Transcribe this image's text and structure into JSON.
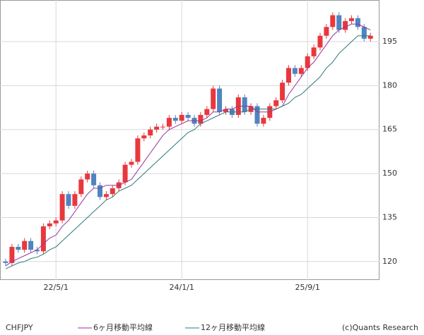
{
  "chart_data": {
    "type": "candlestick",
    "categories": [
      null,
      null,
      null,
      null,
      null,
      null,
      null,
      null,
      "22/5/1",
      null,
      null,
      null,
      null,
      null,
      null,
      null,
      null,
      null,
      null,
      null,
      null,
      null,
      null,
      null,
      null,
      null,
      null,
      null,
      "24/1/1",
      null,
      null,
      null,
      null,
      null,
      null,
      null,
      null,
      null,
      null,
      null,
      null,
      null,
      null,
      null,
      null,
      null,
      null,
      null,
      "25/9/1",
      null,
      null,
      null,
      null,
      null,
      null,
      null,
      null,
      null,
      null
    ],
    "ylim": [
      113.7,
      209.2
    ],
    "yticks": [
      120,
      135,
      150,
      165,
      180,
      195
    ],
    "grid": true,
    "axis_side": "right",
    "source": "(c)Quants Research",
    "series": [
      {
        "name": "CHFJPY",
        "type": "candlestick",
        "up_color": "#e8383d",
        "down_color": "#4f84c0",
        "open": [
          120,
          119.5,
          125,
          124,
          127,
          124,
          123.5,
          132,
          133,
          134,
          143,
          139,
          143,
          148,
          150,
          146,
          142,
          143,
          145,
          147,
          153,
          154,
          162,
          163,
          165,
          166,
          166,
          169,
          168,
          170,
          169,
          167,
          170,
          172,
          179,
          171,
          172,
          170,
          176,
          171,
          173,
          167,
          169,
          173,
          175,
          181,
          186,
          184,
          186,
          190,
          193,
          197,
          200,
          204,
          199,
          202,
          203,
          200,
          196
        ],
        "high": [
          121,
          126,
          126,
          128,
          128,
          125,
          133,
          134,
          135,
          144,
          144,
          144,
          149,
          151,
          151,
          147,
          144,
          146,
          148,
          154,
          155,
          163,
          164,
          166,
          167,
          167,
          170,
          170,
          171,
          171,
          170,
          171,
          173,
          180,
          180,
          173,
          173,
          177,
          177,
          174,
          174,
          170,
          174,
          176,
          182,
          187,
          187,
          187,
          191,
          194,
          198,
          201,
          205,
          205,
          203,
          204,
          204,
          201,
          198
        ],
        "low": [
          118.5,
          118.5,
          123,
          123,
          123,
          122.5,
          122.5,
          131,
          132,
          133,
          138,
          138,
          142,
          147,
          145,
          141,
          141,
          142,
          144,
          146,
          152,
          153,
          161,
          162,
          164,
          165,
          165,
          167,
          167,
          168,
          166,
          166,
          169,
          171,
          170,
          170,
          169,
          169,
          170,
          170,
          166,
          166,
          168,
          172,
          174,
          180,
          183,
          183,
          185,
          189,
          192,
          196,
          199,
          198,
          198,
          201,
          199,
          195,
          195
        ],
        "close": [
          119.5,
          125,
          124,
          127,
          124,
          123.5,
          132,
          133,
          134,
          143,
          139,
          143,
          148,
          150,
          146,
          142,
          143,
          145,
          147,
          153,
          154,
          162,
          163,
          165,
          166,
          166,
          169,
          168,
          170,
          169,
          167,
          170,
          172,
          179,
          171,
          172,
          170,
          176,
          171,
          173,
          167,
          169,
          173,
          175,
          181,
          186,
          184,
          186,
          190,
          193,
          197,
          200,
          204,
          199,
          202,
          203,
          200,
          196,
          197
        ]
      },
      {
        "name": "6ヶ月移動平均線",
        "type": "line",
        "color": "#993399",
        "values": [
          118.5,
          120,
          121,
          122,
          123,
          124,
          126,
          128,
          129,
          132,
          134,
          137,
          140,
          143,
          145,
          145,
          146,
          146,
          146,
          147,
          148,
          151,
          154,
          157,
          160,
          163,
          165,
          166,
          167,
          168,
          168,
          168,
          169,
          171,
          171,
          172,
          172,
          173,
          173,
          173,
          171,
          171,
          171,
          172,
          173,
          177,
          180,
          183,
          186,
          188,
          191,
          194,
          197,
          199,
          200,
          201,
          201,
          200,
          199
        ]
      },
      {
        "name": "12ヶ月移動平均線",
        "type": "line",
        "color": "#2e7878",
        "values": [
          117.5,
          118.5,
          119.5,
          120,
          121,
          121.5,
          122.5,
          124,
          125,
          127,
          129,
          131,
          133,
          135,
          137,
          139,
          141,
          142,
          144,
          145,
          146,
          148,
          150,
          152,
          154,
          156,
          158,
          160,
          162,
          164,
          165,
          167,
          168,
          169,
          170,
          171,
          171,
          171,
          171,
          172,
          172,
          172,
          172,
          172,
          173,
          174,
          176,
          177,
          179,
          181,
          183,
          186,
          188,
          191,
          193,
          195,
          197,
          197,
          197
        ]
      }
    ]
  }
}
